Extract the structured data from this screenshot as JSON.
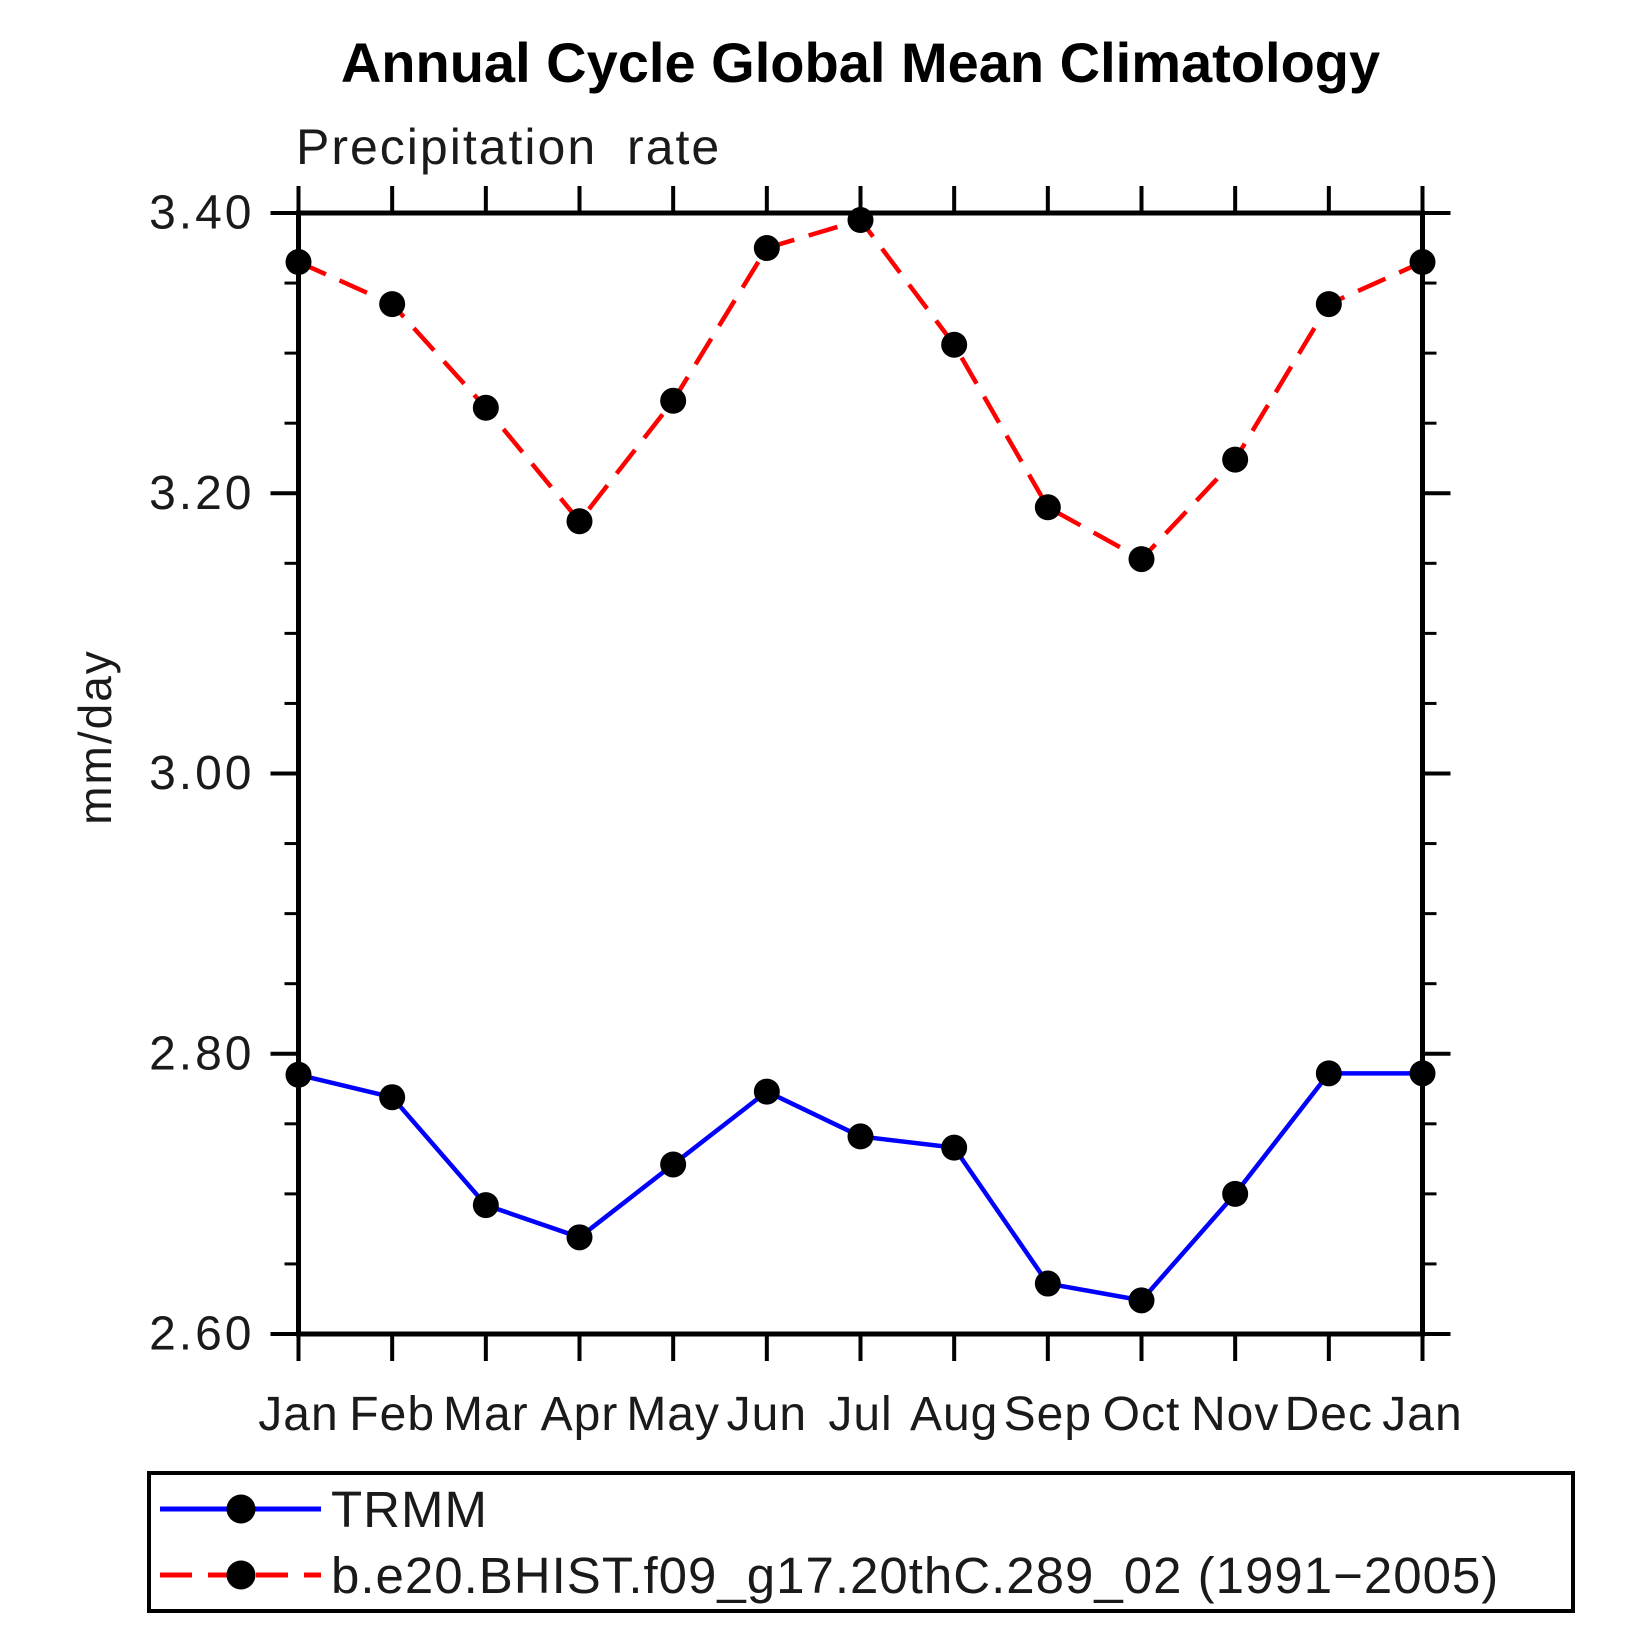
{
  "chart_data": {
    "type": "line",
    "title": "Annual Cycle Global Mean Climatology",
    "subtitle": "Precipitation rate",
    "ylabel": "mm/day",
    "xlabel": "",
    "categories": [
      "Jan",
      "Feb",
      "Mar",
      "Apr",
      "May",
      "Jun",
      "Jul",
      "Aug",
      "Sep",
      "Oct",
      "Nov",
      "Dec",
      "Jan"
    ],
    "ylim": [
      2.6,
      3.4
    ],
    "ytick_major_step": 0.2,
    "ytick_minor_step": 0.05,
    "ytick_labels": [
      "3.40",
      "3.20",
      "3.00",
      "2.80",
      "2.60"
    ],
    "grid": "off",
    "legend_position": "bottom-left-box",
    "series": [
      {
        "name": "TRMM",
        "color": "#0000ff",
        "line_style": "solid",
        "marker": "filled-circle",
        "marker_color": "#000000",
        "values": [
          2.785,
          2.769,
          2.692,
          2.669,
          2.721,
          2.773,
          2.741,
          2.733,
          2.636,
          2.624,
          2.7,
          2.786,
          2.786
        ]
      },
      {
        "name": "b.e20.BHIST.f09_g17.20thC.289_02 (1991−2005)",
        "color": "#ff0000",
        "line_style": "dashed",
        "marker": "filled-circle",
        "marker_color": "#000000",
        "values": [
          3.365,
          3.335,
          3.261,
          3.18,
          3.266,
          3.375,
          3.395,
          3.306,
          3.19,
          3.153,
          3.224,
          3.335,
          3.365
        ]
      }
    ],
    "axis_color": "#000000"
  }
}
